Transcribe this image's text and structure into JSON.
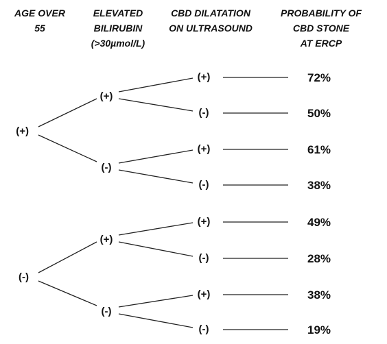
{
  "headers": {
    "age": [
      "AGE OVER",
      "55"
    ],
    "bilirubin": [
      "ELEVATED",
      "BILIRUBIN",
      "(>30µmol/L)"
    ],
    "cbd": [
      "CBD DILATATION",
      "ON ULTRASOUND"
    ],
    "probability": [
      "PROBABILITY OF",
      "CBD STONE",
      "AT ERCP"
    ]
  },
  "tree": [
    {
      "label": "(+)",
      "children": [
        {
          "label": "(+)",
          "children": [
            {
              "label": "(+)",
              "probability": "72%"
            },
            {
              "label": "(-)",
              "probability": "50%"
            }
          ]
        },
        {
          "label": "(-)",
          "children": [
            {
              "label": "(+)",
              "probability": "61%"
            },
            {
              "label": "(-)",
              "probability": "38%"
            }
          ]
        }
      ]
    },
    {
      "label": "(-)",
      "children": [
        {
          "label": "(+)",
          "children": [
            {
              "label": "(+)",
              "probability": "49%"
            },
            {
              "label": "(-)",
              "probability": "28%"
            }
          ]
        },
        {
          "label": "(-)",
          "children": [
            {
              "label": "(+)",
              "probability": "38%"
            },
            {
              "label": "(-)",
              "probability": "19%"
            }
          ]
        }
      ]
    }
  ]
}
